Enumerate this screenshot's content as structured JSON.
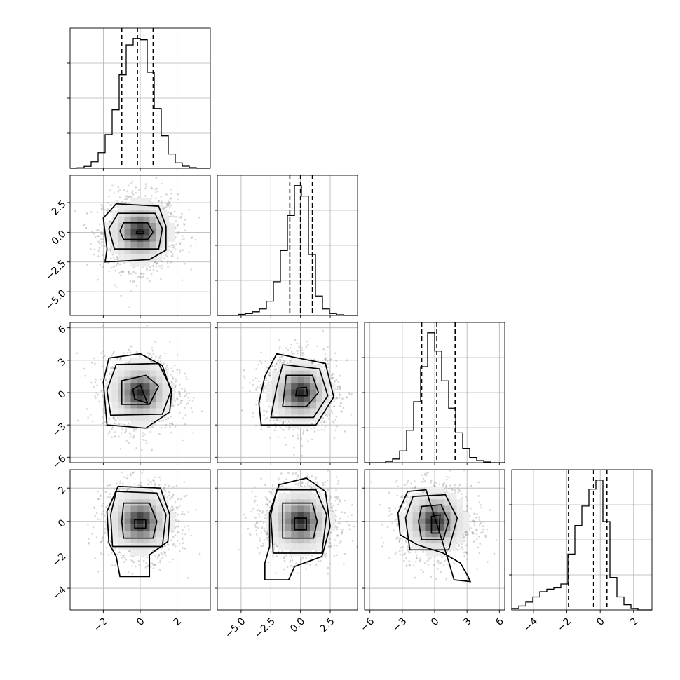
{
  "chart_data": {
    "type": "corner",
    "grid": true,
    "quantiles": [
      0.16,
      0.5,
      0.84
    ],
    "parameters": [
      {
        "range": [
          -3.8,
          3.8
        ],
        "ticks": [
          -2,
          0,
          2
        ],
        "tick_labels": [
          "−2",
          "0",
          "2"
        ],
        "quantile_values": [
          -1.0,
          -0.15,
          0.7
        ],
        "hist": {
          "edges_start": -3.8,
          "bin_width": 0.38,
          "counts": [
            0,
            4,
            15,
            50,
            120,
            260,
            450,
            720,
            950,
            1000,
            990,
            740,
            460,
            250,
            110,
            42,
            16,
            5,
            0,
            0
          ]
        }
      },
      {
        "range": [
          -7.0,
          4.8
        ],
        "ticks": [
          -5.0,
          -2.5,
          0.0,
          2.5
        ],
        "tick_labels": [
          "−5.0",
          "−2.5",
          "0.0",
          "2.5"
        ],
        "quantile_values": [
          -0.9,
          0.0,
          1.0
        ],
        "hist": {
          "edges_start": -7.0,
          "bin_width": 0.59,
          "counts": [
            0,
            0,
            0,
            8,
            14,
            28,
            50,
            110,
            260,
            500,
            770,
            1000,
            920,
            470,
            150,
            50,
            15,
            5,
            0,
            0
          ]
        }
      },
      {
        "range": [
          -6.5,
          6.5
        ],
        "ticks": [
          -6,
          -3,
          0,
          3,
          6
        ],
        "tick_labels": [
          "−6",
          "−3",
          "0",
          "3",
          "6"
        ],
        "quantile_values": [
          -1.2,
          0.2,
          1.9
        ],
        "hist": {
          "edges_start": -6.5,
          "bin_width": 0.65,
          "counts": [
            0,
            0,
            0,
            10,
            28,
            90,
            250,
            470,
            740,
            1000,
            860,
            630,
            420,
            230,
            110,
            40,
            16,
            5,
            0,
            0
          ]
        }
      },
      {
        "range": [
          -5.3,
          3.1
        ],
        "ticks": [
          -4,
          -2,
          0,
          2
        ],
        "tick_labels": [
          "−4",
          "−2",
          "0",
          "2"
        ],
        "quantile_values": [
          -1.9,
          -0.4,
          0.4
        ],
        "hist": {
          "edges_start": -5.3,
          "bin_width": 0.42,
          "counts": [
            10,
            30,
            60,
            100,
            140,
            160,
            170,
            200,
            430,
            650,
            800,
            930,
            1000,
            680,
            250,
            100,
            40,
            10,
            0,
            0
          ]
        }
      }
    ],
    "pairs": [
      {
        "x": 0,
        "y": 1,
        "center": [
          0.0,
          0.0
        ],
        "contours": [
          [
            [
              -0.2,
              -0.1
            ],
            [
              0.2,
              -0.1
            ],
            [
              0.2,
              0.1
            ],
            [
              -0.2,
              0.1
            ]
          ],
          [
            [
              -0.9,
              -0.6
            ],
            [
              0.4,
              -0.6
            ],
            [
              0.7,
              0.0
            ],
            [
              0.4,
              0.8
            ],
            [
              -0.9,
              0.8
            ],
            [
              -1.1,
              0.1
            ]
          ],
          [
            [
              -1.4,
              -1.4
            ],
            [
              1.0,
              -1.4
            ],
            [
              1.2,
              0.3
            ],
            [
              0.8,
              1.6
            ],
            [
              -1.2,
              1.6
            ],
            [
              -1.7,
              0.3
            ]
          ],
          [
            [
              -1.9,
              -2.5
            ],
            [
              0.5,
              -2.3
            ],
            [
              1.4,
              -1.5
            ],
            [
              1.4,
              0.5
            ],
            [
              1.0,
              2.2
            ],
            [
              -1.3,
              2.4
            ],
            [
              -2.0,
              1.2
            ],
            [
              -1.8,
              -1.4
            ]
          ]
        ]
      },
      {
        "x": 0,
        "y": 2,
        "center": [
          0.0,
          0.0
        ],
        "contours": [
          [
            [
              -0.3,
              -0.6
            ],
            [
              0.4,
              -1.0
            ],
            [
              0.0,
              0.7
            ],
            [
              -0.4,
              0.3
            ]
          ],
          [
            [
              -1.0,
              -1.1
            ],
            [
              0.5,
              -1.1
            ],
            [
              1.0,
              0.6
            ],
            [
              0.3,
              1.6
            ],
            [
              -1.0,
              1.1
            ]
          ],
          [
            [
              -1.6,
              -2.1
            ],
            [
              1.2,
              -2.0
            ],
            [
              1.7,
              0.3
            ],
            [
              1.0,
              2.7
            ],
            [
              -1.3,
              2.6
            ],
            [
              -1.8,
              0.2
            ]
          ],
          [
            [
              -1.8,
              -3.0
            ],
            [
              0.3,
              -3.3
            ],
            [
              1.6,
              -1.8
            ],
            [
              1.7,
              0.0
            ],
            [
              1.2,
              2.5
            ],
            [
              0.0,
              3.6
            ],
            [
              -1.7,
              3.2
            ],
            [
              -2.0,
              1.0
            ]
          ]
        ]
      },
      {
        "x": 0,
        "y": 3,
        "center": [
          0.0,
          0.0
        ],
        "contours": [
          [
            [
              -0.3,
              -0.4
            ],
            [
              0.3,
              -0.4
            ],
            [
              0.3,
              0.1
            ],
            [
              -0.3,
              0.1
            ]
          ],
          [
            [
              -0.9,
              -1.0
            ],
            [
              0.7,
              -1.0
            ],
            [
              0.9,
              0.0
            ],
            [
              0.5,
              1.1
            ],
            [
              -0.9,
              1.1
            ],
            [
              -1.0,
              0.0
            ]
          ],
          [
            [
              -1.5,
              -1.5
            ],
            [
              1.2,
              -1.5
            ],
            [
              1.4,
              0.4
            ],
            [
              0.9,
              1.7
            ],
            [
              -1.3,
              1.8
            ],
            [
              -1.6,
              0.4
            ]
          ],
          [
            [
              -1.1,
              -3.3
            ],
            [
              0.5,
              -3.3
            ],
            [
              0.5,
              -2.0
            ],
            [
              1.5,
              -1.2
            ],
            [
              1.6,
              0.4
            ],
            [
              1.1,
              2.0
            ],
            [
              -1.2,
              2.1
            ],
            [
              -1.8,
              0.6
            ],
            [
              -1.7,
              -1.3
            ],
            [
              -1.3,
              -2.1
            ]
          ]
        ]
      },
      {
        "x": 1,
        "y": 2,
        "center": [
          0.0,
          0.0
        ],
        "contours": [
          [
            [
              -0.4,
              -0.3
            ],
            [
              0.6,
              -0.3
            ],
            [
              0.5,
              0.5
            ],
            [
              -0.3,
              0.4
            ]
          ],
          [
            [
              -1.5,
              -1.3
            ],
            [
              0.5,
              -1.3
            ],
            [
              1.5,
              0.0
            ],
            [
              1.0,
              1.6
            ],
            [
              -1.2,
              1.6
            ]
          ],
          [
            [
              -2.5,
              -2.3
            ],
            [
              1.1,
              -2.3
            ],
            [
              2.3,
              -0.3
            ],
            [
              1.6,
              2.2
            ],
            [
              -1.5,
              2.6
            ],
            [
              -2.0,
              0.5
            ]
          ],
          [
            [
              -3.3,
              -3.0
            ],
            [
              1.3,
              -3.0
            ],
            [
              2.8,
              -0.4
            ],
            [
              2.1,
              2.7
            ],
            [
              -2.0,
              3.6
            ],
            [
              -3.0,
              1.5
            ],
            [
              -3.5,
              -1.0
            ]
          ]
        ]
      },
      {
        "x": 1,
        "y": 3,
        "center": [
          0.0,
          0.0
        ],
        "contours": [
          [
            [
              -0.5,
              -0.5
            ],
            [
              0.5,
              -0.5
            ],
            [
              0.5,
              0.2
            ],
            [
              -0.5,
              0.2
            ]
          ],
          [
            [
              -1.5,
              -1.0
            ],
            [
              1.1,
              -1.0
            ],
            [
              1.4,
              0.0
            ],
            [
              1.0,
              1.1
            ],
            [
              -1.5,
              1.1
            ]
          ],
          [
            [
              -2.3,
              -1.9
            ],
            [
              1.8,
              -1.9
            ],
            [
              2.2,
              0.4
            ],
            [
              1.3,
              1.9
            ],
            [
              -2.0,
              1.9
            ],
            [
              -2.5,
              0.4
            ]
          ],
          [
            [
              -3.0,
              -3.5
            ],
            [
              -1.0,
              -3.5
            ],
            [
              -0.5,
              -2.7
            ],
            [
              1.8,
              -2.1
            ],
            [
              2.5,
              -0.3
            ],
            [
              2.1,
              1.8
            ],
            [
              0.5,
              2.6
            ],
            [
              -1.8,
              2.2
            ],
            [
              -2.6,
              0.5
            ],
            [
              -2.6,
              -1.5
            ],
            [
              -3.0,
              -2.5
            ]
          ]
        ]
      },
      {
        "x": 2,
        "y": 3,
        "center": [
          0.0,
          0.0
        ],
        "contours": [
          [
            [
              -0.3,
              -0.7
            ],
            [
              0.4,
              -0.7
            ],
            [
              0.5,
              0.4
            ],
            [
              -0.3,
              0.3
            ]
          ],
          [
            [
              -1.2,
              -1.1
            ],
            [
              0.8,
              -1.1
            ],
            [
              1.3,
              0.0
            ],
            [
              0.6,
              1.0
            ],
            [
              -1.2,
              0.9
            ],
            [
              -1.5,
              0.0
            ]
          ],
          [
            [
              -2.3,
              -1.7
            ],
            [
              1.3,
              -1.7
            ],
            [
              2.1,
              0.2
            ],
            [
              1.0,
              1.6
            ],
            [
              -2.0,
              1.5
            ],
            [
              -2.7,
              0.2
            ]
          ],
          [
            [
              -3.2,
              -0.8
            ],
            [
              -1.6,
              -1.4
            ],
            [
              0.8,
              -1.9
            ],
            [
              2.4,
              -2.5
            ],
            [
              3.1,
              -3.3
            ],
            [
              3.3,
              -3.6
            ],
            [
              1.8,
              -3.5
            ],
            [
              1.3,
              -2.4
            ],
            [
              -0.8,
              1.9
            ],
            [
              -2.5,
              1.8
            ],
            [
              -3.4,
              0.5
            ]
          ]
        ]
      }
    ]
  }
}
